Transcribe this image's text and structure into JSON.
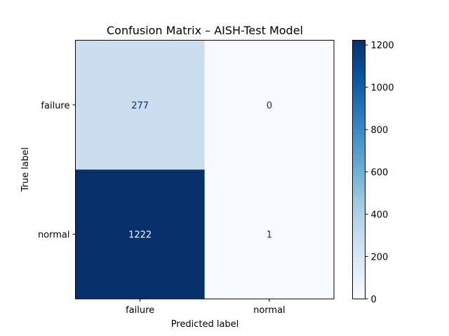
{
  "chart_data": {
    "type": "heatmap",
    "title": "Confusion Matrix – AISH-Test Model",
    "xlabel": "Predicted label",
    "ylabel": "True label",
    "x_categories": [
      "failure",
      "normal"
    ],
    "y_categories": [
      "failure",
      "normal"
    ],
    "values": [
      [
        277,
        0
      ],
      [
        1222,
        1
      ]
    ],
    "colorbar": {
      "min": 0,
      "max": 1222,
      "ticks": [
        0,
        200,
        400,
        600,
        800,
        1000,
        1200
      ],
      "colormap": "Blues"
    },
    "colors": {
      "low": "#f7fbff",
      "high": "#08306b",
      "text_on_dark": "#f7fbff",
      "text_on_light": "#08306b"
    }
  }
}
